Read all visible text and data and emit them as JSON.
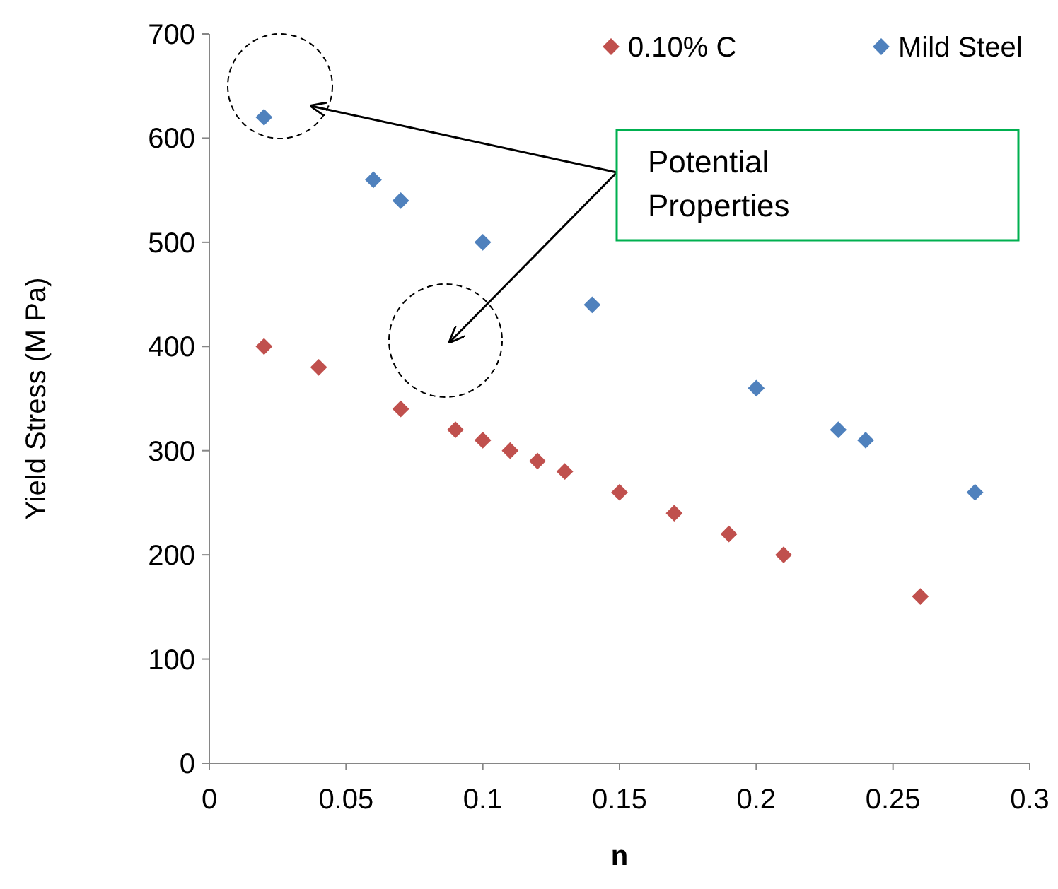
{
  "chart_data": {
    "type": "scatter",
    "xlabel": "n",
    "ylabel": "Yield Stress (M Pa)",
    "xlim": [
      0,
      0.3
    ],
    "xticks": [
      0,
      0.05,
      0.1,
      0.15,
      0.2,
      0.25,
      0.3
    ],
    "ylim": [
      0,
      700
    ],
    "yticks": [
      0,
      100,
      200,
      300,
      400,
      500,
      600,
      700
    ],
    "grid": false,
    "legend": "top right",
    "marker": "diamond",
    "annotations": [
      "Potential Properties"
    ],
    "series": [
      {
        "name": "0.10% C",
        "color": "#c0504d",
        "x": [
          0.02,
          0.04,
          0.07,
          0.09,
          0.1,
          0.11,
          0.12,
          0.13,
          0.15,
          0.17,
          0.19,
          0.21,
          0.26
        ],
        "values": [
          400,
          380,
          340,
          320,
          310,
          300,
          290,
          280,
          260,
          240,
          220,
          200,
          160
        ]
      },
      {
        "name": "Mild Steel",
        "color": "#4f81bd",
        "x": [
          0.02,
          0.06,
          0.07,
          0.1,
          0.14,
          0.2,
          0.23,
          0.24,
          0.28
        ],
        "values": [
          620,
          560,
          540,
          500,
          440,
          360,
          320,
          310,
          260
        ]
      }
    ]
  }
}
